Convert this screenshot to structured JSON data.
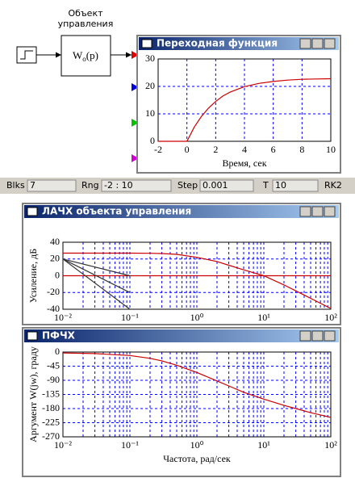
{
  "diagram": {
    "object_label_1": "Объект",
    "object_label_2": "управления",
    "block_w": "W",
    "block_sub": "o",
    "block_arg": "(p)"
  },
  "status": {
    "blks_label": "Blks",
    "blks": "7",
    "rng_label": "Rng",
    "rng": "-2 : 10",
    "step_label": "Step",
    "step": "0.001",
    "t_label": "T",
    "t": "10",
    "method": "RK2"
  },
  "chart_data": [
    {
      "type": "line",
      "title": "Переходная функция",
      "xlabel": "Время, сек",
      "xlim": [
        -2,
        10
      ],
      "ylim": [
        0,
        30
      ],
      "xticks": [
        -2,
        0,
        2,
        4,
        6,
        8,
        10
      ],
      "yticks": [
        0,
        10,
        20,
        30
      ],
      "grid": true,
      "series": [
        {
          "color": "#cc0000",
          "x": [
            -2,
            -1,
            0,
            0.5,
            1,
            1.5,
            2,
            2.5,
            3,
            4,
            5,
            6,
            7,
            8,
            9,
            10
          ],
          "values": [
            0,
            0,
            0,
            5.1,
            9.0,
            12.1,
            14.5,
            16.5,
            17.9,
            19.9,
            21.1,
            21.8,
            22.3,
            22.6,
            22.7,
            22.8
          ]
        }
      ]
    },
    {
      "type": "line",
      "title": "ЛАЧХ объекта управления",
      "ylabel": "Усиление, дБ",
      "xscale": "log",
      "xlim": [
        0.01,
        100
      ],
      "ylim": [
        -40,
        40
      ],
      "xticks": [
        {
          "value": 0.01,
          "label": "10⁻²"
        },
        {
          "value": 0.1,
          "label": "10⁻¹"
        },
        {
          "value": 1,
          "label": "10⁰"
        },
        {
          "value": 10,
          "label": "10¹"
        },
        {
          "value": 100,
          "label": "10²"
        }
      ],
      "yticks": [
        -40,
        -20,
        0,
        20,
        40
      ],
      "grid": true,
      "series": [
        {
          "color": "#cc0000",
          "x": [
            0.01,
            0.03,
            0.1,
            0.2,
            0.3,
            0.5,
            1,
            2,
            3,
            5,
            10,
            20,
            30,
            50,
            100
          ],
          "values": [
            27,
            27,
            27,
            26.8,
            26.5,
            25.5,
            22,
            17,
            12.5,
            7,
            0,
            -11,
            -18,
            -27,
            -39
          ]
        },
        {
          "color": "#cc0000",
          "x": [
            0.01,
            100
          ],
          "values": [
            0,
            0
          ]
        },
        {
          "color": "#333333",
          "x": [
            0.01,
            0.1
          ],
          "values": [
            20,
            0
          ]
        },
        {
          "color": "#333333",
          "x": [
            0.01,
            0.1
          ],
          "values": [
            20,
            -20
          ]
        },
        {
          "color": "#333333",
          "x": [
            0.01,
            0.1
          ],
          "values": [
            20,
            -40
          ]
        }
      ]
    },
    {
      "type": "line",
      "title": "ПФЧХ",
      "ylabel": "Аргумент W(jw), граду",
      "xlabel": "Частота, рад/сек",
      "xscale": "log",
      "xlim": [
        0.01,
        100
      ],
      "ylim": [
        -270,
        0
      ],
      "xticks": [
        {
          "value": 0.01,
          "label": "10⁻²"
        },
        {
          "value": 0.1,
          "label": "10⁻¹"
        },
        {
          "value": 1,
          "label": "10⁰"
        },
        {
          "value": 10,
          "label": "10¹"
        },
        {
          "value": 100,
          "label": "10²"
        }
      ],
      "yticks": [
        0,
        -45,
        -90,
        -135,
        -180,
        -225,
        -270
      ],
      "grid": true,
      "series": [
        {
          "color": "#cc0000",
          "x": [
            0.01,
            0.03,
            0.1,
            0.2,
            0.3,
            0.5,
            1,
            2,
            3,
            5,
            10,
            20,
            30,
            50,
            100
          ],
          "values": [
            -3,
            -5,
            -11,
            -20,
            -28,
            -42,
            -65,
            -92,
            -108,
            -128,
            -150,
            -170,
            -180,
            -193,
            -208
          ]
        }
      ]
    }
  ]
}
